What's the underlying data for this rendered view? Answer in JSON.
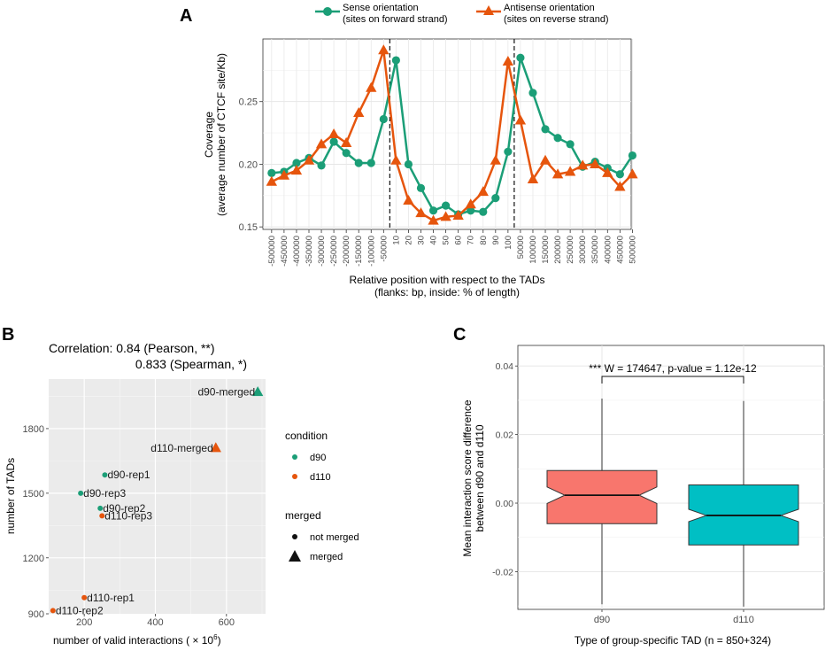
{
  "panels": {
    "a_letter": "A",
    "b_letter": "B",
    "c_letter": "C"
  },
  "colors": {
    "green": "#1b9e77",
    "orange": "#e6550d",
    "box_red": "#f8766d",
    "box_teal": "#00bfc4"
  },
  "chart_data": [
    {
      "id": "A",
      "type": "line",
      "ylabel_line1": "Coverage",
      "ylabel_line2": "(average number of CTCF site/Kb)",
      "xlabel_line1": "Relative position with respect to the TADs",
      "xlabel_line2": "(flanks: bp, inside: % of length)",
      "categories": [
        "-500000",
        "-450000",
        "-400000",
        "-350000",
        "-300000",
        "-250000",
        "-200000",
        "-150000",
        "-100000",
        "-50000",
        "10",
        "20",
        "30",
        "40",
        "50",
        "60",
        "70",
        "80",
        "90",
        "100",
        "50000",
        "100000",
        "150000",
        "200000",
        "250000",
        "300000",
        "350000",
        "400000",
        "450000",
        "500000"
      ],
      "vlines_after_index": [
        9,
        19
      ],
      "ylim": [
        0.148,
        0.3
      ],
      "yticks": [
        0.15,
        0.2,
        0.25
      ],
      "ytick_labels": [
        "0.15",
        "0.20",
        "0.25"
      ],
      "series": [
        {
          "name_line1": "Sense orientation",
          "name_line2": "(sites on forward strand)",
          "marker": "circle",
          "values": [
            0.193,
            0.194,
            0.201,
            0.205,
            0.199,
            0.218,
            0.209,
            0.201,
            0.201,
            0.236,
            0.283,
            0.2,
            0.181,
            0.163,
            0.167,
            0.16,
            0.163,
            0.162,
            0.173,
            0.21,
            0.285,
            0.257,
            0.228,
            0.221,
            0.216,
            0.198,
            0.202,
            0.197,
            0.192,
            0.207
          ]
        },
        {
          "name_line1": "Antisense orientation",
          "name_line2": "(sites on reverse strand)",
          "marker": "triangle",
          "values": [
            0.186,
            0.191,
            0.195,
            0.203,
            0.216,
            0.224,
            0.217,
            0.241,
            0.261,
            0.291,
            0.203,
            0.171,
            0.161,
            0.155,
            0.158,
            0.159,
            0.168,
            0.178,
            0.203,
            0.282,
            0.235,
            0.188,
            0.203,
            0.192,
            0.194,
            0.199,
            0.2,
            0.193,
            0.182,
            0.192
          ]
        }
      ]
    },
    {
      "id": "B",
      "type": "scatter",
      "correlation_line1": "Correlation: 0.84 (Pearson, **)",
      "correlation_line2": "0.833 (Spearman, *)",
      "xlabel": "number of valid interactions (",
      "xlabel_mult": " × 10",
      "xlabel_exp": "6",
      "xlabel_end": ")",
      "ylabel": "number of TADs",
      "xlim": [
        100,
        710
      ],
      "ylim": [
        940,
        2030
      ],
      "xticks": [
        200,
        400,
        600
      ],
      "yticks": [
        900,
        1200,
        1500,
        1800
      ],
      "legend": {
        "condition_title": "condition",
        "condition_items": [
          {
            "label": "d90",
            "color": "#1b9e77"
          },
          {
            "label": "d110",
            "color": "#e6550d"
          }
        ],
        "merged_title": "merged",
        "merged_items": [
          {
            "label": "not merged",
            "shape": "circle"
          },
          {
            "label": "merged",
            "shape": "triangle"
          }
        ]
      },
      "points": [
        {
          "label": "d90-merged",
          "x": 688,
          "y": 1970,
          "condition": "d90",
          "merged": true
        },
        {
          "label": "d110-merged",
          "x": 570,
          "y": 1710,
          "condition": "d110",
          "merged": true
        },
        {
          "label": "d90-rep1",
          "x": 258,
          "y": 1585,
          "condition": "d90",
          "merged": false
        },
        {
          "label": "d90-rep3",
          "x": 190,
          "y": 1500,
          "condition": "d90",
          "merged": false
        },
        {
          "label": "d90-rep2",
          "x": 245,
          "y": 1430,
          "condition": "d90",
          "merged": false
        },
        {
          "label": "d110-rep3",
          "x": 250,
          "y": 1395,
          "condition": "d110",
          "merged": false
        },
        {
          "label": "d110-rep1",
          "x": 200,
          "y": 1015,
          "condition": "d110",
          "merged": false
        },
        {
          "label": "d110-rep2",
          "x": 112,
          "y": 955,
          "condition": "d110",
          "merged": false
        }
      ]
    },
    {
      "id": "C",
      "type": "boxplot",
      "ylabel_line1": "Mean interaction score difference",
      "ylabel_line2": "between d90 and d110",
      "xlabel": "Type of group-specific TAD (n = 850+324)",
      "annotation": "*** W = 174647, p-value = 1.12e-12",
      "ylim": [
        -0.031,
        0.046
      ],
      "yticks": [
        -0.02,
        0.0,
        0.02,
        0.04
      ],
      "ytick_labels": [
        "-0.02",
        "0.00",
        "0.02",
        "0.04"
      ],
      "boxes": [
        {
          "label": "d90",
          "whisker_low": -0.0295,
          "q1": -0.006,
          "notch_low": -0.0001,
          "median": 0.0023,
          "notch_high": 0.0047,
          "q3": 0.0095,
          "whisker_high": 0.0305,
          "color": "#f8766d"
        },
        {
          "label": "d110",
          "whisker_low": -0.0302,
          "q1": -0.0122,
          "notch_low": -0.0054,
          "median": -0.0036,
          "notch_high": -0.0018,
          "q3": 0.0053,
          "whisker_high": 0.0298,
          "color": "#00bfc4"
        }
      ]
    }
  ]
}
